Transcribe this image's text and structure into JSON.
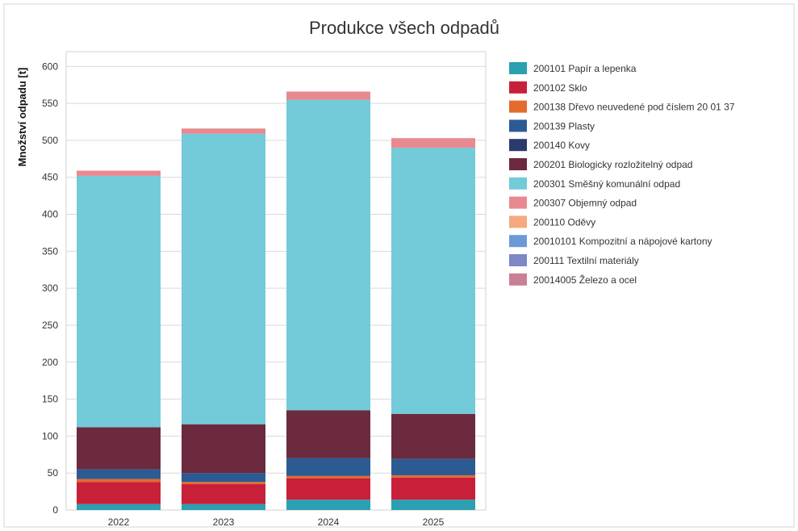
{
  "chart_data": {
    "type": "bar",
    "stacked": true,
    "title": "Produkce všech odpadů",
    "xlabel": "",
    "ylabel": "Množství odpadu [t]",
    "ylim": [
      0,
      620
    ],
    "yticks": [
      0,
      50,
      100,
      150,
      200,
      250,
      300,
      350,
      400,
      450,
      500,
      550,
      600
    ],
    "grid": true,
    "legend_position": "right",
    "categories": [
      "2022",
      "2023",
      "2024",
      "2025"
    ],
    "series": [
      {
        "name": "200101 Papír a lepenka",
        "color": "#2aa0b1",
        "values": [
          8,
          8,
          14,
          14
        ]
      },
      {
        "name": "200102 Sklo",
        "color": "#c9203a",
        "values": [
          30,
          27,
          29,
          30
        ]
      },
      {
        "name": "200138 Dřevo neuvedené pod číslem 20 01 37",
        "color": "#e36b2c",
        "values": [
          4,
          3,
          3,
          3
        ]
      },
      {
        "name": "200139 Plasty",
        "color": "#2c5b94",
        "values": [
          13,
          12,
          24,
          22
        ]
      },
      {
        "name": "200140 Kovy",
        "color": "#2a3a6b",
        "values": [
          0,
          0,
          0,
          0
        ]
      },
      {
        "name": "200201 Biologicky rozložitelný odpad",
        "color": "#6b2a3e",
        "values": [
          57,
          66,
          65,
          61
        ]
      },
      {
        "name": "200301 Směšný komunální odpad",
        "color": "#73cad9",
        "values": [
          340,
          393,
          420,
          360
        ]
      },
      {
        "name": "200307 Objemný odpad",
        "color": "#e8898f",
        "values": [
          7,
          7,
          11,
          13
        ]
      },
      {
        "name": "200110 Oděvy",
        "color": "#f4a97e",
        "values": [
          0,
          0,
          0,
          0
        ]
      },
      {
        "name": "20010101 Kompozitní a nápojové kartony",
        "color": "#6d9ad6",
        "values": [
          0,
          0,
          0,
          0
        ]
      },
      {
        "name": "200111 Textilní materiály",
        "color": "#7e88c4",
        "values": [
          0,
          0,
          0,
          0
        ]
      },
      {
        "name": "20014005 Železo a ocel",
        "color": "#c97f95",
        "values": [
          0,
          0,
          0,
          0
        ]
      }
    ]
  }
}
